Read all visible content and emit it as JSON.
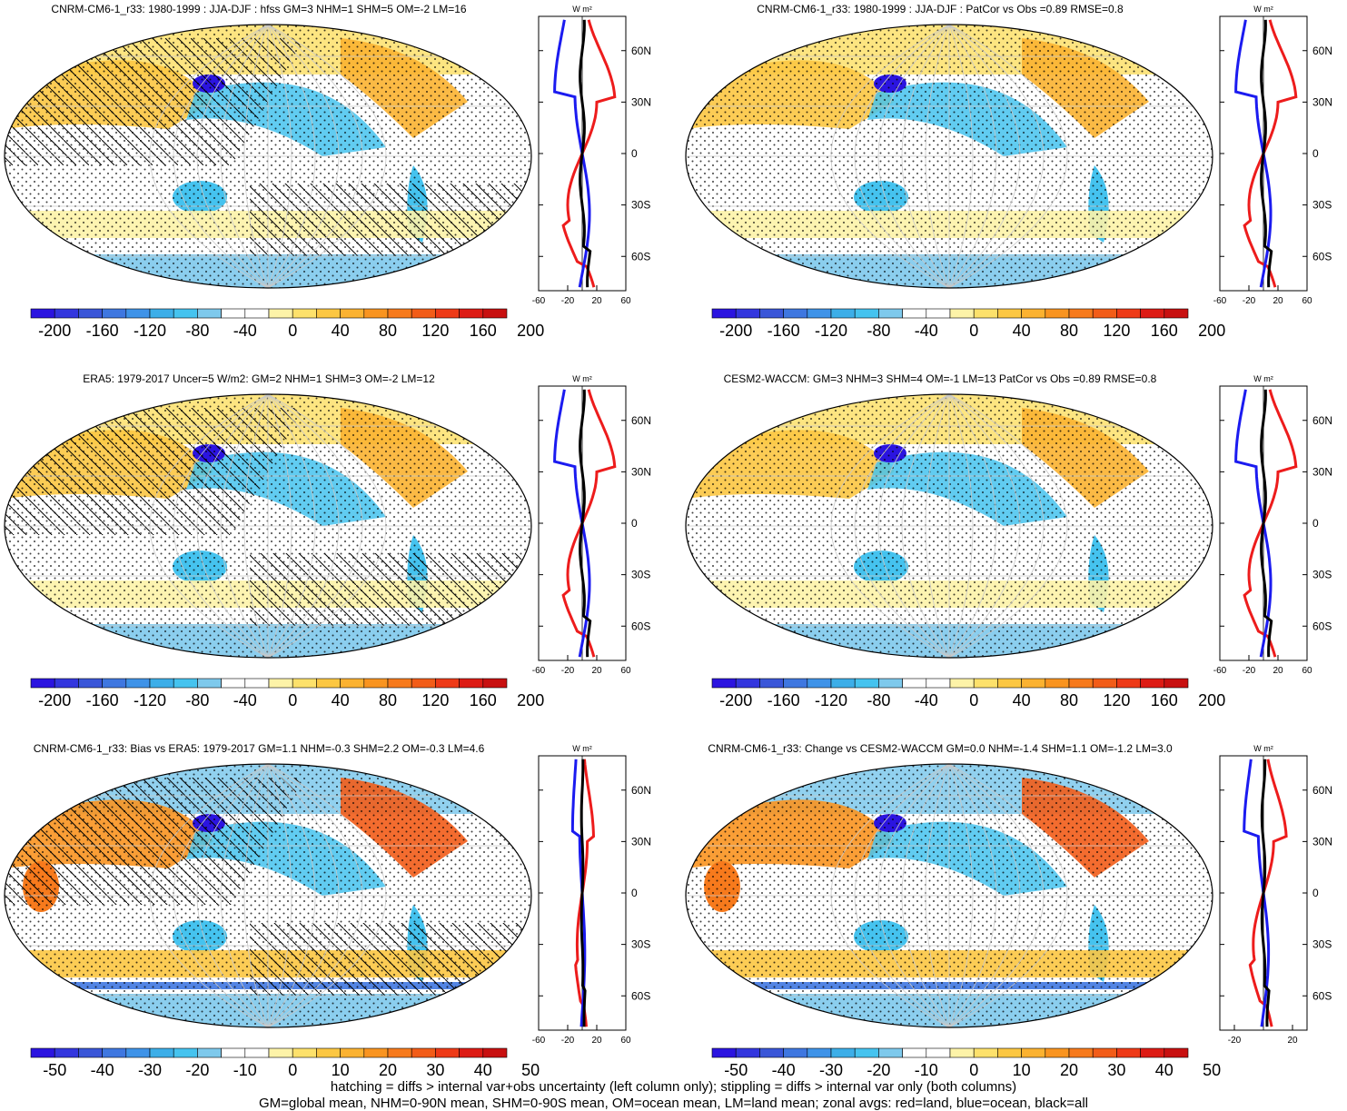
{
  "palette": {
    "colors": [
      "#2b14e0",
      "#3336de",
      "#3a56d8",
      "#3f77e0",
      "#3f93e8",
      "#3caee8",
      "#45c3ef",
      "#7ec9ec",
      "#ffffff",
      "#ffffff",
      "#fdf3a8",
      "#fde16b",
      "#fcc742",
      "#fbb231",
      "#f99420",
      "#f77a1c",
      "#f25c18",
      "#ee3a17",
      "#dd1b14",
      "#c81010"
    ],
    "land": "#ed1c1c",
    "ocean": "#1b1bf0",
    "all": "#000000",
    "outline": "#000000"
  },
  "chart_data": [
    {
      "type": "heatmap",
      "title": "CNRM-CM6-1_r33: 1980-1999 : JJA-DJF : hfss GM=3 NHM=1 SHM=5 OM=-2 LM=16",
      "colorbar_labels": [
        "-200",
        "-160",
        "-120",
        "-80",
        "-40",
        "0",
        "40",
        "80",
        "120",
        "160",
        "200"
      ],
      "profile": {
        "units": "W m²",
        "lat_ticks": [
          "60N",
          "30N",
          "0",
          "30S",
          "60S"
        ],
        "lat_values": [
          60,
          30,
          0,
          -30,
          -60
        ],
        "x_ticks": [
          "-60",
          "-20",
          "20",
          "60"
        ],
        "x_values": [
          -60,
          -20,
          20,
          60
        ],
        "xlim": [
          -60,
          60
        ],
        "ylim": [
          -80,
          80
        ],
        "show_right_labels": true
      }
    },
    {
      "type": "heatmap",
      "title": "CNRM-CM6-1_r33: 1980-1999 : JJA-DJF : PatCor vs Obs =0.89 RMSE=0.8",
      "colorbar_labels": [
        "-200",
        "-160",
        "-120",
        "-80",
        "-40",
        "0",
        "40",
        "80",
        "120",
        "160",
        "200"
      ],
      "profile": {
        "units": "W m²",
        "lat_ticks": [
          "60N",
          "30N",
          "0",
          "30S",
          "60S"
        ],
        "lat_values": [
          60,
          30,
          0,
          -30,
          -60
        ],
        "x_ticks": [
          "-60",
          "-20",
          "20",
          "60"
        ],
        "x_values": [
          -60,
          -20,
          20,
          60
        ],
        "xlim": [
          -60,
          60
        ],
        "ylim": [
          -80,
          80
        ],
        "show_right_labels": true
      }
    },
    {
      "type": "heatmap",
      "title": "ERA5: 1979-2017 Uncer=5 W/m2: GM=2 NHM=1 SHM=3 OM=-2 LM=12",
      "colorbar_labels": [
        "-200",
        "-160",
        "-120",
        "-80",
        "-40",
        "0",
        "40",
        "80",
        "120",
        "160",
        "200"
      ],
      "profile": {
        "units": "W m²",
        "lat_ticks": [
          "60N",
          "30N",
          "0",
          "30S",
          "60S"
        ],
        "lat_values": [
          60,
          30,
          0,
          -30,
          -60
        ],
        "x_ticks": [
          "-60",
          "-20",
          "20",
          "60"
        ],
        "x_values": [
          -60,
          -20,
          20,
          60
        ],
        "xlim": [
          -60,
          60
        ],
        "ylim": [
          -80,
          80
        ],
        "show_right_labels": true
      }
    },
    {
      "type": "heatmap",
      "title": "CESM2-WACCM: GM=3 NHM=3 SHM=4 OM=-1 LM=13 PatCor vs Obs =0.89 RMSE=0.8",
      "colorbar_labels": [
        "-200",
        "-160",
        "-120",
        "-80",
        "-40",
        "0",
        "40",
        "80",
        "120",
        "160",
        "200"
      ],
      "profile": {
        "units": "W m²",
        "lat_ticks": [
          "60N",
          "30N",
          "0",
          "30S",
          "60S"
        ],
        "lat_values": [
          60,
          30,
          0,
          -30,
          -60
        ],
        "x_ticks": [
          "-60",
          "-20",
          "20",
          "60"
        ],
        "x_values": [
          -60,
          -20,
          20,
          60
        ],
        "xlim": [
          -60,
          60
        ],
        "ylim": [
          -80,
          80
        ],
        "show_right_labels": true
      }
    },
    {
      "type": "heatmap",
      "title": "CNRM-CM6-1_r33: Bias vs ERA5: 1979-2017 GM=1.1 NHM=-0.3 SHM=2.2 OM=-0.3 LM=4.6",
      "colorbar_labels": [
        "-50",
        "-40",
        "-30",
        "-20",
        "-10",
        "0",
        "10",
        "20",
        "30",
        "40",
        "50"
      ],
      "profile": {
        "units": "W m²",
        "lat_ticks": [
          "60N",
          "30N",
          "0",
          "30S",
          "60S"
        ],
        "lat_values": [
          60,
          30,
          0,
          -30,
          -60
        ],
        "x_ticks": [
          "-60",
          "-20",
          "20",
          "60"
        ],
        "x_values": [
          -60,
          -20,
          20,
          60
        ],
        "xlim": [
          -60,
          60
        ],
        "ylim": [
          -80,
          80
        ],
        "show_right_labels": true
      }
    },
    {
      "type": "heatmap",
      "title": "CNRM-CM6-1_r33: Change vs CESM2-WACCM GM=0.0 NHM=-1.4 SHM=1.1 OM=-1.2 LM=3.0",
      "colorbar_labels": [
        "-50",
        "-40",
        "-30",
        "-20",
        "-10",
        "0",
        "10",
        "20",
        "30",
        "40",
        "50"
      ],
      "profile": {
        "units": "W m²",
        "lat_ticks": [
          "60N",
          "30N",
          "0",
          "30S",
          "60S"
        ],
        "lat_values": [
          60,
          30,
          0,
          -30,
          -60
        ],
        "x_ticks": [
          "-20",
          "20"
        ],
        "x_values": [
          -20,
          20
        ],
        "xlim": [
          -30,
          30
        ],
        "ylim": [
          -80,
          80
        ],
        "show_right_labels": true
      }
    }
  ],
  "caption": {
    "line1": "hatching = diffs > internal var+obs uncertainty (left column only); stippling = diffs > internal var only (both columns)",
    "line2": "GM=global mean, NHM=0-90N mean, SHM=0-90S mean, OM=ocean mean, LM=land mean; zonal avgs: red=land, blue=ocean, black=all"
  }
}
